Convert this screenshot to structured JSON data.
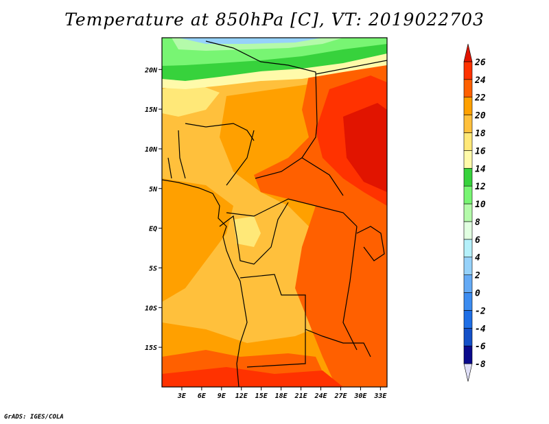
{
  "title": "Temperature at 850hPa [C], VT: 2019022703",
  "credit": "GrADS: IGES/COLA",
  "map": {
    "lat_range": [
      -20,
      24
    ],
    "lon_range": [
      0,
      34
    ],
    "lat_ticks": [
      "20N",
      "15N",
      "10N",
      "5N",
      "EQ",
      "5S",
      "10S",
      "15S"
    ],
    "lat_tick_values": [
      20,
      15,
      10,
      5,
      0,
      -5,
      -10,
      -15
    ],
    "lon_ticks": [
      "3E",
      "6E",
      "9E",
      "12E",
      "15E",
      "18E",
      "21E",
      "24E",
      "27E",
      "30E",
      "33E"
    ],
    "lon_tick_values": [
      3,
      6,
      9,
      12,
      15,
      18,
      21,
      24,
      27,
      30,
      33
    ]
  },
  "colorbar": {
    "labels": [
      "26",
      "24",
      "22",
      "20",
      "18",
      "16",
      "14",
      "12",
      "10",
      "8",
      "6",
      "4",
      "2",
      "0",
      "-2",
      "-4",
      "-6",
      "-8"
    ],
    "colors": [
      "#e0e0f8",
      "#0a0a8c",
      "#1450c8",
      "#1e6ee6",
      "#3c8cf0",
      "#64aaf5",
      "#96d2fa",
      "#b4f0fa",
      "#e1ffe1",
      "#b4faaa",
      "#78f573",
      "#37d23c",
      "#fffaaa",
      "#ffe878",
      "#ffc03c",
      "#ffa000",
      "#ff6000",
      "#ff3200",
      "#e11400"
    ]
  }
}
